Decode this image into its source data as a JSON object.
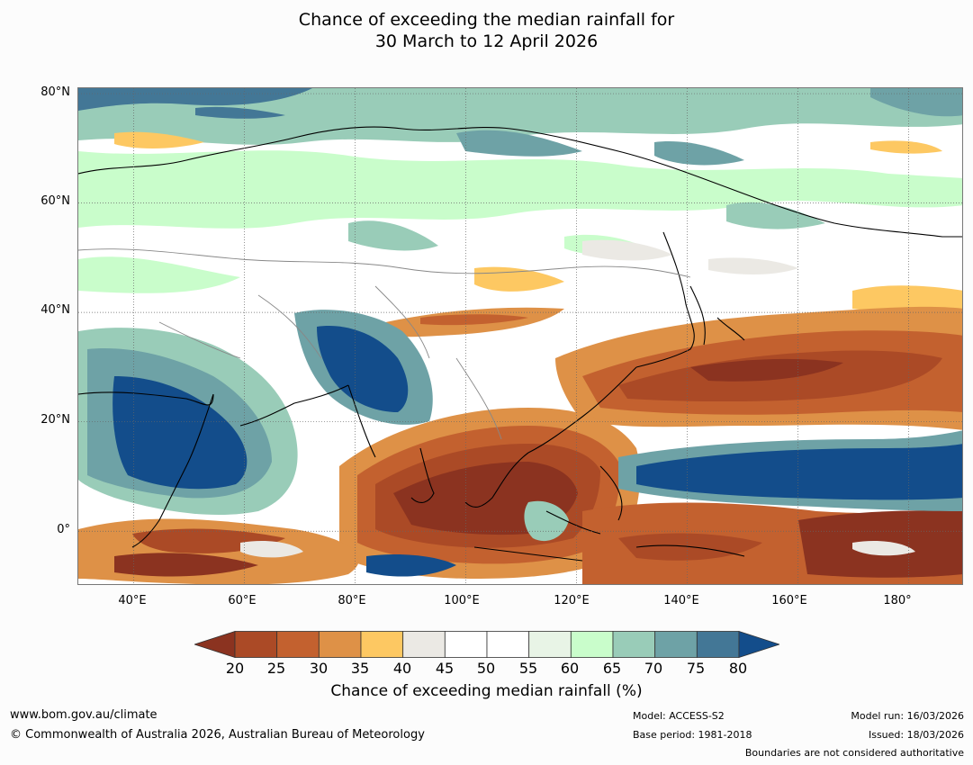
{
  "title": {
    "line1": "Chance of exceeding the median rainfall for",
    "line2": "30 March to 12 April 2026"
  },
  "map": {
    "extent": {
      "lon_min": 30,
      "lon_max": 190,
      "lat_min": -10,
      "lat_max": 81
    },
    "lat_labels": [
      "80°N",
      "60°N",
      "40°N",
      "20°N",
      "0°"
    ],
    "lat_values": [
      80,
      60,
      40,
      20,
      0
    ],
    "lon_labels": [
      "40°E",
      "60°E",
      "80°E",
      "100°E",
      "120°E",
      "140°E",
      "160°E",
      "180°"
    ],
    "lon_values": [
      40,
      60,
      80,
      100,
      120,
      140,
      160,
      180
    ],
    "gridlines": true,
    "regions_description_in_data": false
  },
  "colorbar": {
    "ticks": [
      "20",
      "25",
      "30",
      "35",
      "40",
      "45",
      "50",
      "55",
      "60",
      "65",
      "70",
      "75",
      "80"
    ],
    "colors": [
      "#ab4a26",
      "#c3612f",
      "#de9147",
      "#fdc862",
      "#ebe9e4",
      "#ffffff",
      "#ffffff",
      "#e8f4e6",
      "#c9fdcb",
      "#99ccb8",
      "#6ea2a6",
      "#437796"
    ],
    "under_color": "#8b3320",
    "over_color": "#134d8b",
    "label": "Chance of exceeding median rainfall (%)"
  },
  "footer": {
    "url": "www.bom.gov.au/climate",
    "copyright": "© Commonwealth of Australia 2026, Australian Bureau of Meteorology",
    "model": "Model: ACCESS-S2",
    "base_period": "Base period: 1981-2018",
    "model_run": "Model run: 16/03/2026",
    "issued": "Issued: 18/03/2026",
    "disclaimer": "Boundaries are not considered authoritative"
  }
}
